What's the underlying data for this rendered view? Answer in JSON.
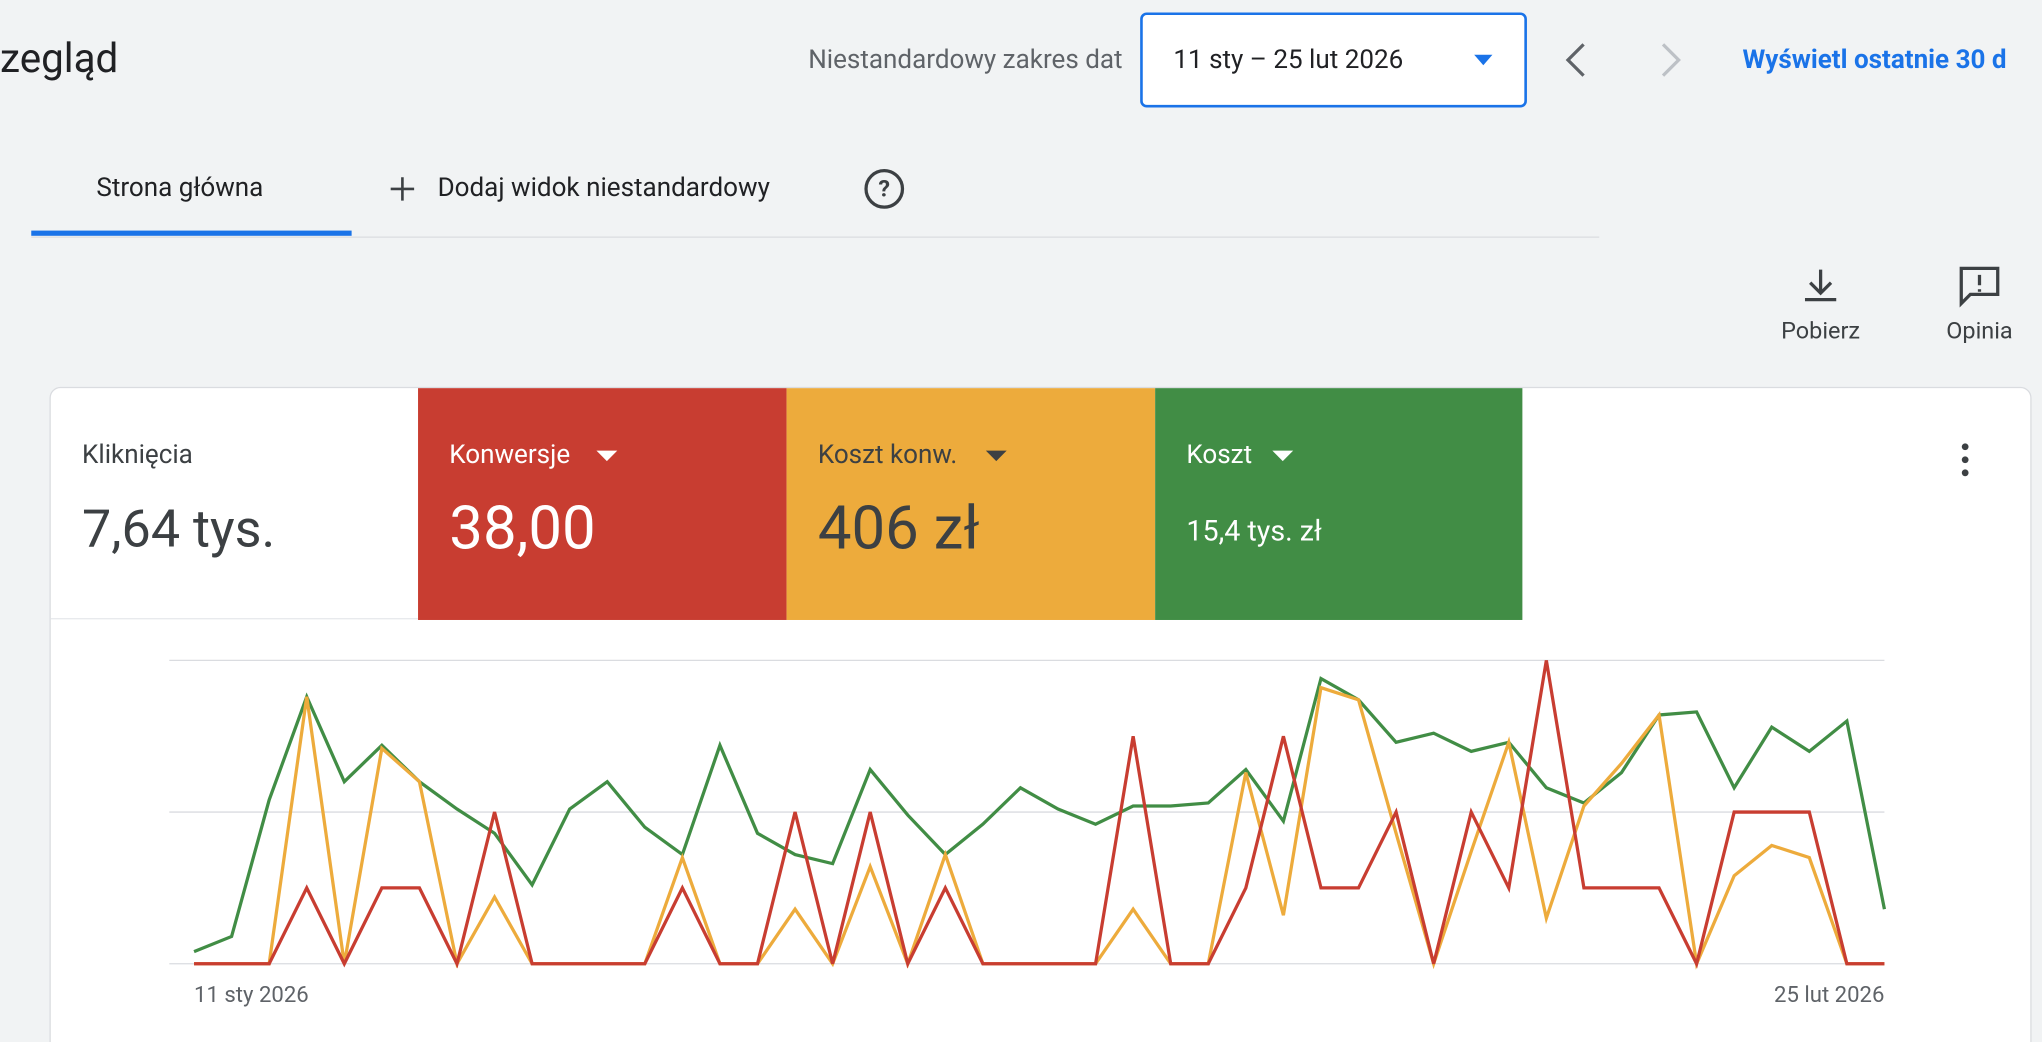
{
  "header": {
    "title": "zegląd",
    "date_range_label": "Niestandardowy zakres dat",
    "date_range": "11 sty – 25 lut 2026",
    "link": "Wyświetl ostatnie 30 d"
  },
  "tabs": [
    "Strona główna",
    "Dodaj widok niestandardowy"
  ],
  "actions": [
    "Pobierz",
    "Opinia"
  ],
  "metrics": [
    {
      "label": "Kliknięcia",
      "value": "7,64 tys."
    },
    {
      "label": "Konwersje",
      "value": "38,00"
    },
    {
      "label": "Koszt konw.",
      "value": "406 zł"
    },
    {
      "label": "Koszt",
      "value": "15,4 tys. zł"
    }
  ],
  "chart_data": {
    "type": "line",
    "categories": [
      "11 sty 2026",
      null,
      null,
      null,
      null,
      null,
      null,
      null,
      null,
      null,
      null,
      null,
      null,
      null,
      null,
      null,
      null,
      null,
      null,
      null,
      null,
      null,
      null,
      null,
      null,
      null,
      null,
      null,
      null,
      null,
      null,
      null,
      null,
      null,
      null,
      null,
      null,
      null,
      null,
      null,
      null,
      null,
      null,
      null,
      null,
      "25 lut 2026"
    ],
    "ylim": [
      0,
      100
    ],
    "yticks": [
      0,
      50,
      100
    ],
    "grid": true,
    "series": [
      {
        "color": "#418d45",
        "values": [
          4,
          9,
          54,
          88,
          60,
          72,
          60,
          51,
          43,
          26,
          51,
          60,
          45,
          36,
          72,
          43,
          36,
          33,
          64,
          49,
          36,
          46,
          58,
          51,
          46,
          52,
          52,
          53,
          64,
          47,
          94,
          87,
          73,
          76,
          70,
          73,
          58,
          53,
          63,
          82,
          83,
          58,
          78,
          70,
          80,
          18
        ]
      },
      {
        "color": "#edab3c",
        "values": [
          0,
          0,
          0,
          88,
          0,
          71,
          60,
          0,
          22,
          0,
          0,
          0,
          0,
          35,
          0,
          0,
          18,
          0,
          32,
          0,
          36,
          0,
          0,
          0,
          0,
          18,
          0,
          0,
          63,
          16,
          91,
          87,
          43,
          0,
          37,
          73,
          15,
          52,
          66,
          82,
          0,
          29,
          39,
          35,
          0,
          0
        ]
      },
      {
        "color": "#c83d31",
        "values": [
          0,
          0,
          0,
          25,
          0,
          25,
          25,
          0,
          50,
          0,
          0,
          0,
          0,
          25,
          0,
          0,
          50,
          0,
          50,
          0,
          25,
          0,
          0,
          0,
          0,
          75,
          0,
          0,
          25,
          75,
          25,
          25,
          50,
          0,
          50,
          25,
          100,
          25,
          25,
          25,
          0,
          50,
          50,
          50,
          0,
          0
        ]
      }
    ]
  }
}
